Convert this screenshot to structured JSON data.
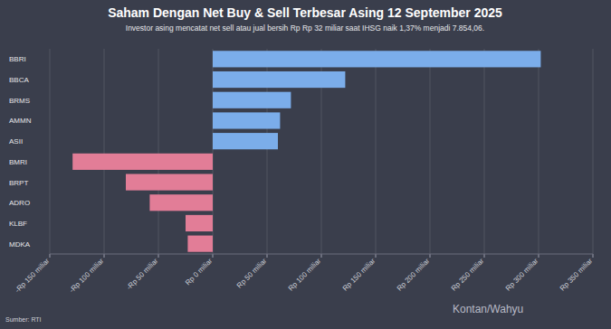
{
  "chart_data": {
    "type": "bar",
    "orientation": "horizontal",
    "title": "Saham Dengan Net Buy & Sell Terbesar Asing 12 September 2025",
    "subtitle": "Investor asing mencatat net sell atau jual bersih Rp Rp 32 miliar saat IHSG naik 1,37% menjadi 7.854,06.",
    "categories": [
      "BBRI",
      "BBCA",
      "BRMS",
      "AMMN",
      "ASII",
      "BMRI",
      "BRPT",
      "ADRO",
      "KLBF",
      "MDKA"
    ],
    "values": [
      302,
      122,
      72,
      62,
      60,
      -129,
      -80,
      -58,
      -25,
      -23
    ],
    "colors": [
      "#7badea",
      "#7badea",
      "#7badea",
      "#7badea",
      "#7badea",
      "#e27d97",
      "#e27d97",
      "#e27d97",
      "#e27d97",
      "#e27d97"
    ],
    "xlim": [
      -150,
      350
    ],
    "xticks": [
      {
        "value": -150,
        "label": "-Rp 150 miliar"
      },
      {
        "value": -100,
        "label": "-Rp 100 miliar"
      },
      {
        "value": -50,
        "label": "-Rp 50 miliar"
      },
      {
        "value": 0,
        "label": "Rp 0 miliar"
      },
      {
        "value": 50,
        "label": "Rp 50 miliar"
      },
      {
        "value": 100,
        "label": "Rp 100 miliar"
      },
      {
        "value": 150,
        "label": "Rp 150 miliar"
      },
      {
        "value": 200,
        "label": "Rp 200 miliar"
      },
      {
        "value": 250,
        "label": "Rp 250 miliar"
      },
      {
        "value": 300,
        "label": "Rp 300 miliar"
      },
      {
        "value": 350,
        "label": "Rp 350 miliar"
      }
    ],
    "grid": true,
    "data_labels": false,
    "source": "Sumber: RTI",
    "credit": "Kontan/Wahyu"
  }
}
